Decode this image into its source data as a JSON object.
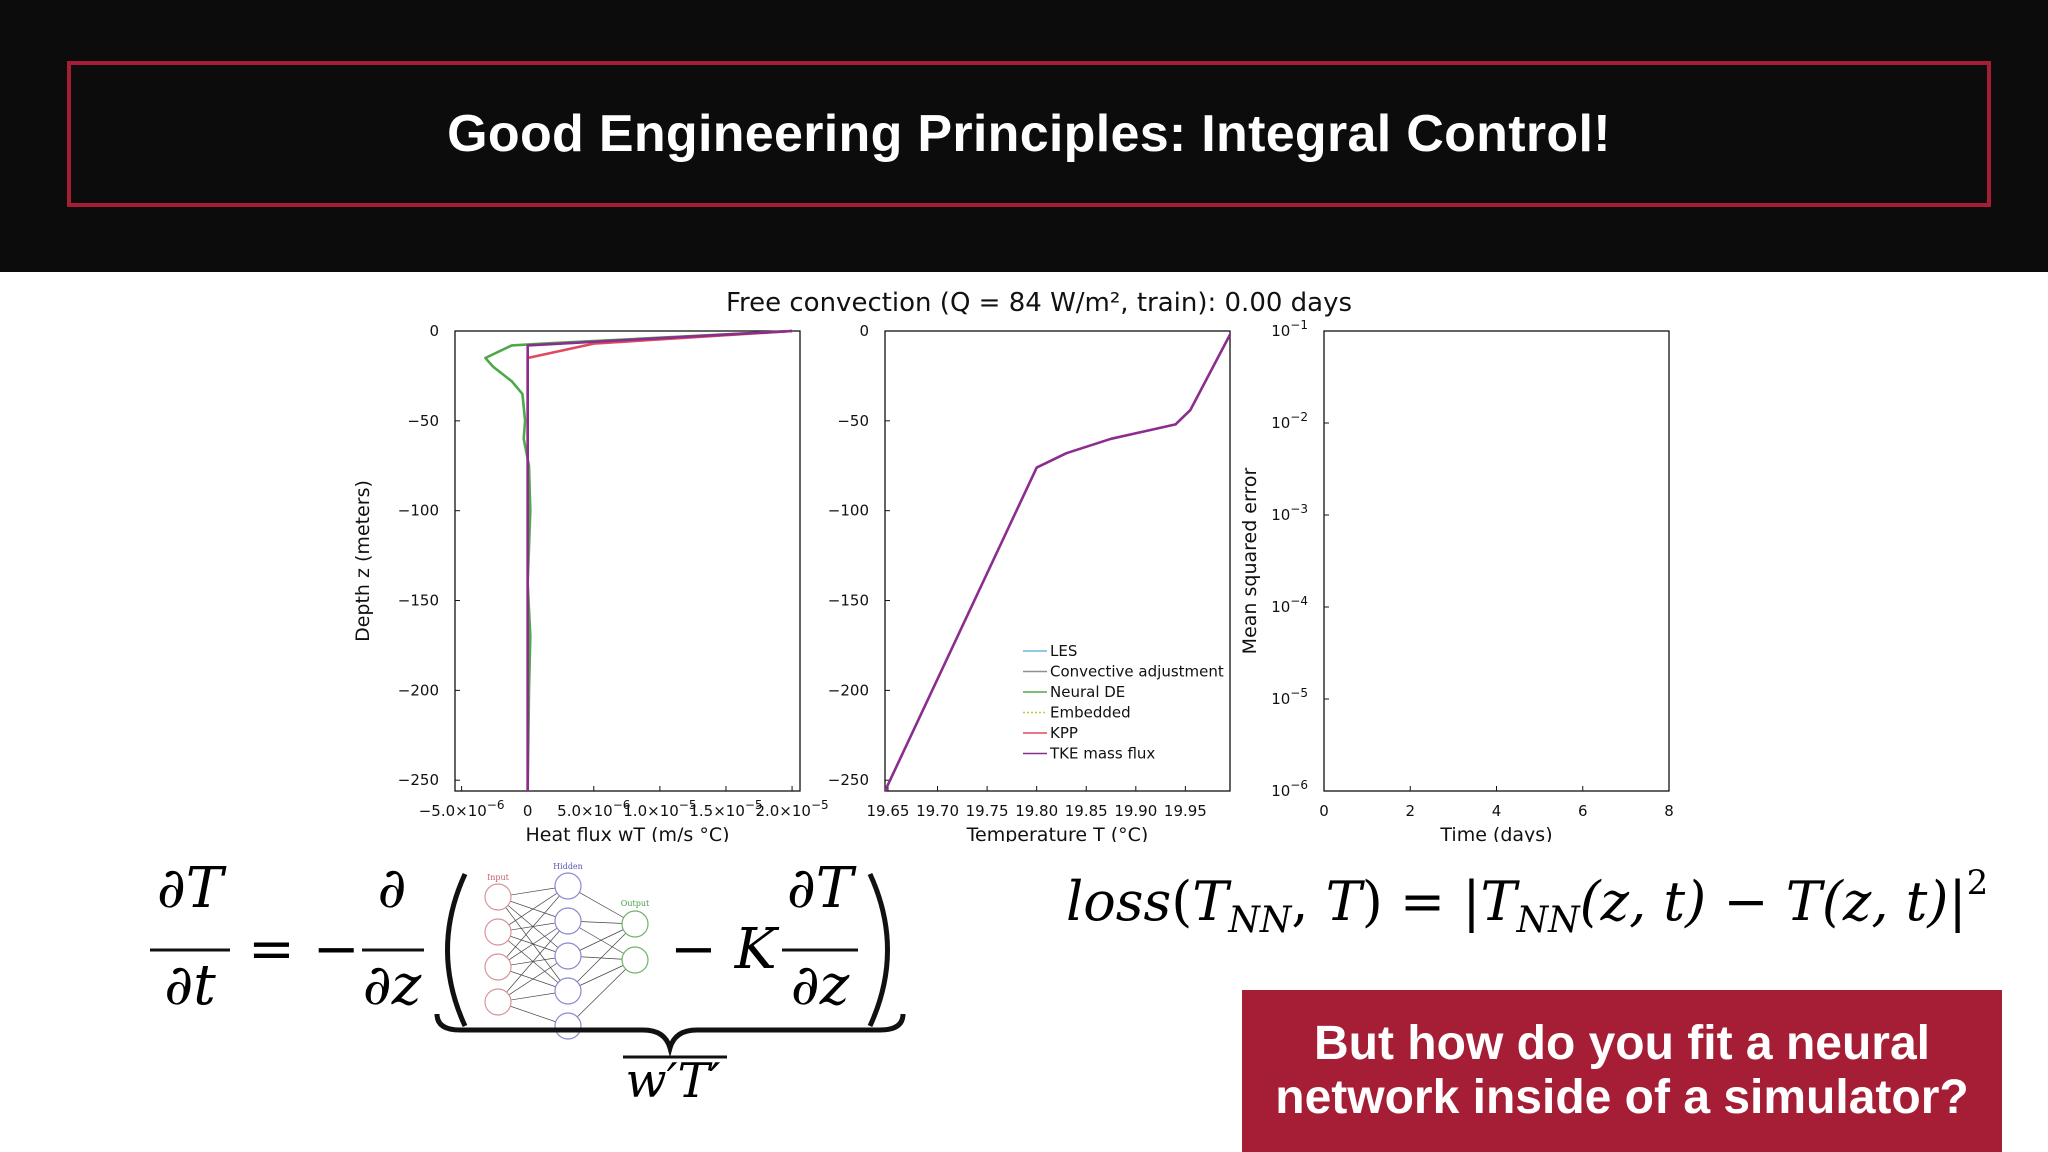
{
  "slide": {
    "title": "Good Engineering Principles: Integral Control!",
    "callout_line1": "But how do you fit a neural",
    "callout_line2": "network inside of a simulator?"
  },
  "colors": {
    "header_bg": "#0c0c0c",
    "accent": "#a51e36",
    "les": "#6fb7d4",
    "convective": "#8f8f8f",
    "neural_de": "#4ea84a",
    "embedded": "#c2ca45",
    "kpp": "#e2485f",
    "tke": "#8a2d8e"
  },
  "figure": {
    "suptitle": "Free convection (Q = 84 W/m², train): 0.00 days"
  },
  "equations": {
    "pde": {
      "lhs_num": "∂T",
      "lhs_den": "∂t",
      "equals": "= −",
      "op_num": "∂",
      "op_den": "∂z",
      "minus_k": "− K",
      "grad_num": "∂T",
      "grad_den": "∂z",
      "underbrace_label": "w′T′",
      "nn_labels": [
        "Input",
        "Hidden",
        "Output"
      ]
    },
    "loss": {
      "lhs": "loss",
      "arg1": "T",
      "arg1_sub": "NN",
      "arg2": "T",
      "rhs_t": "T",
      "rhs_t_sub": "NN",
      "rhs_args": "(z, t)",
      "minus": "−",
      "rhs_t2": "T",
      "rhs_args2": "(z, t)",
      "power": "2"
    }
  },
  "chart_data": [
    {
      "type": "line",
      "xlabel": "Heat flux wT (m/s °C)",
      "ylabel": "Depth z (meters)",
      "xlim": [
        -5.5e-06,
        2.06e-05
      ],
      "ylim": [
        -256,
        0
      ],
      "x_ticks": [
        -5e-06,
        0,
        5e-06,
        1e-05,
        1.5e-05,
        2e-05
      ],
      "x_tick_labels": [
        {
          "base": "−5.0×10",
          "exp": "−6"
        },
        {
          "base": "0",
          "exp": ""
        },
        {
          "base": "5.0×10",
          "exp": "−6"
        },
        {
          "base": "1.0×10",
          "exp": "−5"
        },
        {
          "base": "1.5×10",
          "exp": "−5"
        },
        {
          "base": "2.0×10",
          "exp": "−5"
        }
      ],
      "y_ticks": [
        0,
        -50,
        -100,
        -150,
        -200,
        -250
      ],
      "y_tick_labels": [
        "0",
        "−50",
        "−100",
        "−150",
        "−200",
        "−250"
      ],
      "series": [
        {
          "name": "Neural DE",
          "color_key": "neural_de",
          "points": [
            [
              2e-05,
              0
            ],
            [
              1.2e-06,
              -7
            ],
            [
              -1.2e-06,
              -8
            ],
            [
              -3.2e-06,
              -15
            ],
            [
              -2.6e-06,
              -20
            ],
            [
              -1.2e-06,
              -28
            ],
            [
              -4e-07,
              -35
            ],
            [
              -2e-07,
              -50
            ],
            [
              -3e-07,
              -60
            ],
            [
              1e-07,
              -75
            ],
            [
              2e-07,
              -100
            ],
            [
              0,
              -140
            ],
            [
              2e-07,
              -170
            ],
            [
              1e-07,
              -200
            ],
            [
              0,
              -256
            ]
          ]
        },
        {
          "name": "KPP",
          "color_key": "kpp",
          "points": [
            [
              2e-05,
              0
            ],
            [
              5e-06,
              -7
            ],
            [
              0,
              -15
            ],
            [
              0,
              -256
            ]
          ]
        },
        {
          "name": "TKE mass flux",
          "color_key": "tke",
          "points": [
            [
              2e-05,
              0
            ],
            [
              0,
              -8
            ],
            [
              0,
              -256
            ]
          ]
        }
      ]
    },
    {
      "type": "line",
      "xlabel": "Temperature T (°C)",
      "ylabel": "",
      "xlim": [
        19.647,
        19.995
      ],
      "ylim": [
        -256,
        0
      ],
      "x_ticks": [
        19.65,
        19.7,
        19.75,
        19.8,
        19.85,
        19.9,
        19.95
      ],
      "x_tick_labels": [
        "19.65",
        "19.70",
        "19.75",
        "19.80",
        "19.85",
        "19.90",
        "19.95"
      ],
      "y_ticks": [
        0,
        -50,
        -100,
        -150,
        -200,
        -250
      ],
      "y_tick_labels": [
        "0",
        "−50",
        "−100",
        "−150",
        "−200",
        "−250"
      ],
      "series": [
        {
          "name": "TKE mass flux",
          "color_key": "tke",
          "points": [
            [
              19.995,
              -2
            ],
            [
              19.955,
              -44
            ],
            [
              19.94,
              -52
            ],
            [
              19.875,
              -60
            ],
            [
              19.83,
              -68
            ],
            [
              19.8,
              -76
            ],
            [
              19.647,
              -256
            ]
          ]
        }
      ],
      "legend": {
        "placement": "bottom-right",
        "entries": [
          {
            "label": "LES",
            "color_key": "les",
            "dash": ""
          },
          {
            "label": "Convective adjustment",
            "color_key": "convective",
            "dash": ""
          },
          {
            "label": "Neural DE",
            "color_key": "neural_de",
            "dash": ""
          },
          {
            "label": "Embedded",
            "color_key": "embedded",
            "dash": "2,2"
          },
          {
            "label": "KPP",
            "color_key": "kpp",
            "dash": ""
          },
          {
            "label": "TKE mass flux",
            "color_key": "tke",
            "dash": ""
          }
        ]
      }
    },
    {
      "type": "line",
      "scale": "log-y",
      "xlabel": "Time (days)",
      "ylabel": "Mean squared error",
      "xlim": [
        0,
        8
      ],
      "ylim": [
        1e-06,
        0.1
      ],
      "x_ticks": [
        0,
        2,
        4,
        6,
        8
      ],
      "x_tick_labels": [
        "0",
        "2",
        "4",
        "6",
        "8"
      ],
      "y_ticks": [
        0.1,
        0.01,
        0.001,
        0.0001,
        1e-05,
        1e-06
      ],
      "y_tick_labels": [
        {
          "base": "10",
          "exp": "−1"
        },
        {
          "base": "10",
          "exp": "−2"
        },
        {
          "base": "10",
          "exp": "−3"
        },
        {
          "base": "10",
          "exp": "−4"
        },
        {
          "base": "10",
          "exp": "−5"
        },
        {
          "base": "10",
          "exp": "−6"
        }
      ],
      "series": []
    }
  ]
}
